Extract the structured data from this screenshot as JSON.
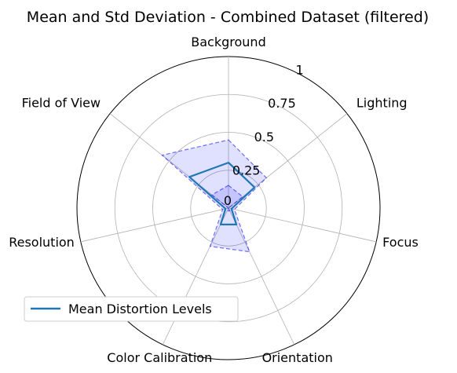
{
  "chart_data": {
    "type": "radar",
    "title": "Mean and Std Deviation - Combined Dataset (filtered)",
    "categories": [
      "Background",
      "Lighting",
      "Focus",
      "Orientation",
      "Color Calibration",
      "Resolution",
      "Field of View"
    ],
    "rlim": [
      0,
      1
    ],
    "r_ticks": [
      0,
      0.25,
      0.5,
      0.75,
      1
    ],
    "r_tick_labels": [
      "0",
      "0.25",
      "0.5",
      "0.75",
      "1"
    ],
    "grid": true,
    "legend_position": "lower-left",
    "series": [
      {
        "name": "Mean Distortion Levels",
        "type": "line",
        "color": "#1f77b4",
        "values": [
          0.3,
          0.22,
          0.02,
          0.12,
          0.12,
          0.02,
          0.33
        ]
      }
    ],
    "std_band": {
      "color": "#0000ff",
      "fill_alpha": 0.12,
      "upper": [
        0.45,
        0.32,
        0.04,
        0.32,
        0.28,
        0.04,
        0.56
      ],
      "lower": [
        0.15,
        0.12,
        0.0,
        0.02,
        0.02,
        0.0,
        0.14
      ]
    }
  }
}
